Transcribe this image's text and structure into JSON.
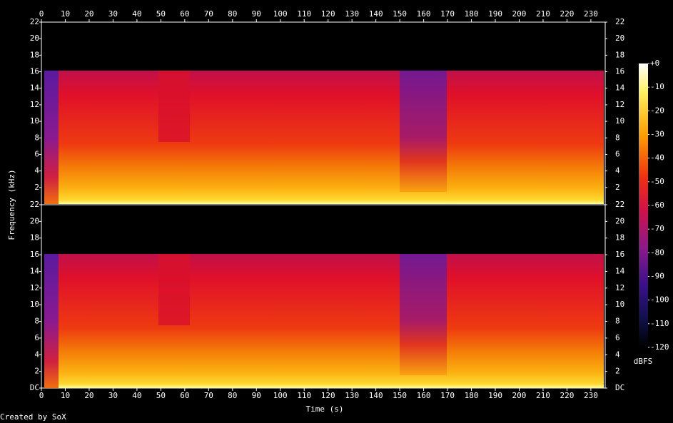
{
  "chart_data": {
    "type": "spectrogram",
    "xlabel": "Time (s)",
    "ylabel": "Frequency (kHz)",
    "xlim": [
      0,
      236
    ],
    "xticks": [
      0,
      10,
      20,
      30,
      40,
      50,
      60,
      70,
      80,
      90,
      100,
      110,
      120,
      130,
      140,
      150,
      160,
      170,
      180,
      190,
      200,
      210,
      220,
      230
    ],
    "channels": [
      {
        "ylim": [
          0,
          22
        ],
        "yticks": [
          2,
          4,
          6,
          8,
          10,
          12,
          14,
          16,
          18,
          20,
          22
        ]
      },
      {
        "ylim": [
          0,
          22
        ],
        "yticks": [
          {
            "value": 0,
            "label": "DC"
          },
          2,
          4,
          6,
          8,
          10,
          12,
          14,
          16,
          18,
          20,
          22
        ]
      }
    ],
    "colorbar": {
      "label": "dBFS",
      "lim": [
        -120,
        0
      ],
      "ticks": [
        {
          "value": 0,
          "label": "+0"
        },
        -10,
        -20,
        -30,
        -40,
        -50,
        -60,
        -70,
        -80,
        -90,
        -100,
        -110,
        -120
      ]
    },
    "credit": "Created by SoX"
  }
}
